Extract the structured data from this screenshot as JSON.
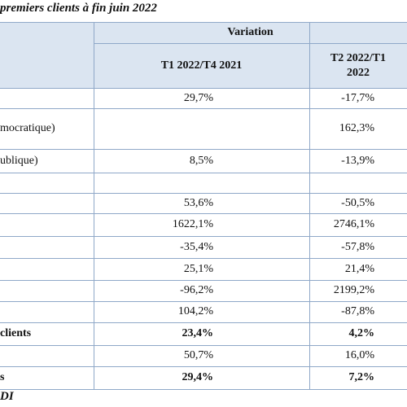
{
  "title": "premiers clients à fin juin 2022",
  "header": {
    "group": "Variation",
    "columns": [
      "T1 2022/T4 2021",
      "T2 2022/T1 2022"
    ]
  },
  "table": {
    "rows": [
      {
        "cells": [
          null,
          "29,7%",
          "-17,7%"
        ]
      },
      {
        "cells": [
          "mocratique)",
          null,
          "162,3%"
        ]
      },
      {
        "cells": [
          "ublique)",
          "8,5%",
          "-13,9%"
        ]
      },
      {
        "cells": [
          null,
          null,
          null
        ]
      },
      {
        "cells": [
          null,
          "53,6%",
          "-50,5%"
        ]
      },
      {
        "cells": [
          null,
          "1622,1%",
          "2746,1%"
        ]
      },
      {
        "cells": [
          null,
          "-35,4%",
          "-57,8%"
        ]
      },
      {
        "cells": [
          null,
          "25,1%",
          "21,4%"
        ]
      },
      {
        "cells": [
          null,
          "-96,2%",
          "2199,2%"
        ]
      },
      {
        "cells": [
          null,
          "104,2%",
          "-87,8%"
        ]
      },
      {
        "cells": [
          "clients",
          "23,4%",
          "4,2%"
        ],
        "bold": true
      },
      {
        "cells": [
          null,
          "50,7%",
          "16,0%"
        ]
      },
      {
        "cells": [
          "s",
          "29,4%",
          "7,2%"
        ],
        "bold": true
      }
    ]
  },
  "footer": "DI"
}
